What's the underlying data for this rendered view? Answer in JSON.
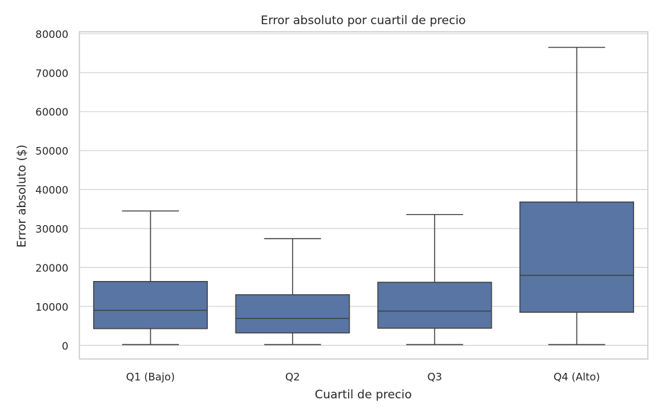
{
  "chart_data": {
    "type": "box",
    "title": "Error absoluto por cuartil de precio",
    "xlabel": "Cuartil de precio",
    "ylabel": "Error absoluto ($)",
    "categories": [
      "Q1 (Bajo)",
      "Q2",
      "Q3",
      "Q4 (Alto)"
    ],
    "boxes": [
      {
        "category": "Q1 (Bajo)",
        "whisker_low": 200,
        "q1": 4300,
        "median": 9000,
        "q3": 16400,
        "whisker_high": 34500
      },
      {
        "category": "Q2",
        "whisker_low": 200,
        "q1": 3200,
        "median": 6900,
        "q3": 13000,
        "whisker_high": 27400
      },
      {
        "category": "Q3",
        "whisker_low": 200,
        "q1": 4400,
        "median": 8800,
        "q3": 16200,
        "whisker_high": 33600
      },
      {
        "category": "Q4 (Alto)",
        "whisker_low": 200,
        "q1": 8500,
        "median": 18000,
        "q3": 36800,
        "whisker_high": 76500
      }
    ],
    "ylim": [
      -3500,
      80500
    ],
    "yticks": [
      0,
      10000,
      20000,
      30000,
      40000,
      50000,
      60000,
      70000,
      80000
    ],
    "grid": "horizontal",
    "colors": {
      "box_fill": "#5875a4",
      "line": "#3f3f3f",
      "grid": "#d3d3d3",
      "frame": "#cccccc"
    }
  }
}
